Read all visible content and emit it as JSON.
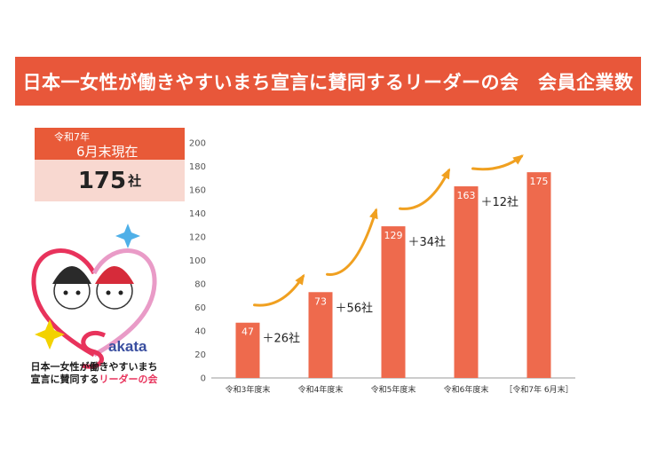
{
  "title": "日本一女性が働きやすいまち宣言に賛同するリーダーの会　会員企業数",
  "status": {
    "era": "令和7年",
    "date": "6月末現在",
    "count": "175",
    "unit": "社"
  },
  "logo": {
    "wordmark": "akata",
    "line1": "日本一女性が働きやすいまち",
    "line2_main": "宣言に賛同する",
    "line2_accent": "リーダーの会"
  },
  "colors": {
    "banner": "#e8573a",
    "bar": "#ee6a4d",
    "arrow": "#f0a020",
    "status_body": "#f8d8d0"
  },
  "chart_data": {
    "type": "bar",
    "categories": [
      "令和3年度末",
      "令和4年度末",
      "令和5年度末",
      "令和6年度末",
      "［令和7年 6月末］"
    ],
    "values": [
      47,
      73,
      129,
      163,
      175
    ],
    "increments": [
      "＋26社",
      "＋56社",
      "＋34社",
      "＋12社"
    ],
    "ylim": [
      0,
      200
    ],
    "yticks": [
      0,
      20,
      40,
      60,
      80,
      100,
      120,
      140,
      160,
      180,
      200
    ],
    "title": "",
    "xlabel": "",
    "ylabel": "",
    "grid": false
  }
}
